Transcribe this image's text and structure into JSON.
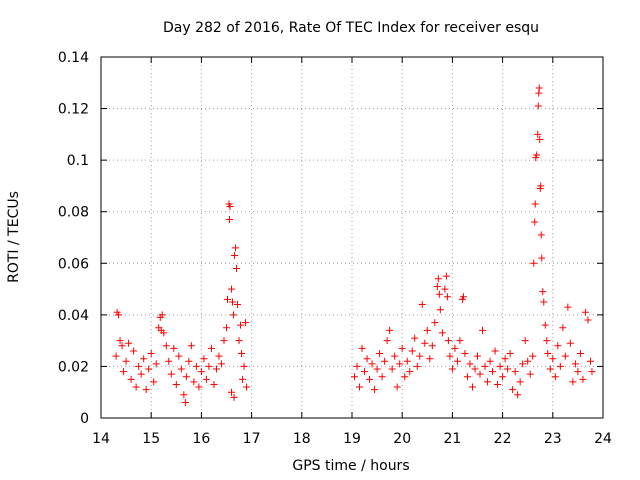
{
  "chart_data": {
    "type": "scatter",
    "title": "Day 282 of 2016, Rate Of TEC Index for receiver esqu",
    "xlabel": "GPS time / hours",
    "ylabel": "ROTI / TECUs",
    "xlim": [
      14,
      24
    ],
    "ylim": [
      0,
      0.14
    ],
    "x_ticks": [
      14,
      15,
      16,
      17,
      18,
      19,
      20,
      21,
      22,
      23,
      24
    ],
    "y_ticks": [
      0,
      0.02,
      0.04,
      0.06,
      0.08,
      0.1,
      0.12,
      0.14
    ],
    "x_tick_labels": [
      "14",
      "15",
      "16",
      "17",
      "18",
      "19",
      "20",
      "21",
      "22",
      "23",
      "24"
    ],
    "y_tick_labels": [
      "0",
      "0.02",
      "0.04",
      "0.06",
      "0.08",
      "0.1",
      "0.12",
      "0.14"
    ],
    "grid": true,
    "marker": "+",
    "color": "#ff0000",
    "series": [
      {
        "name": "ROTI",
        "points": [
          [
            14.32,
            0.041
          ],
          [
            14.35,
            0.04
          ],
          [
            14.3,
            0.024
          ],
          [
            14.38,
            0.03
          ],
          [
            14.42,
            0.028
          ],
          [
            14.45,
            0.018
          ],
          [
            14.5,
            0.022
          ],
          [
            14.55,
            0.029
          ],
          [
            14.6,
            0.015
          ],
          [
            14.65,
            0.026
          ],
          [
            14.7,
            0.012
          ],
          [
            14.75,
            0.02
          ],
          [
            14.8,
            0.017
          ],
          [
            14.85,
            0.023
          ],
          [
            14.9,
            0.011
          ],
          [
            14.95,
            0.019
          ],
          [
            15.0,
            0.025
          ],
          [
            15.05,
            0.014
          ],
          [
            15.1,
            0.021
          ],
          [
            15.15,
            0.035
          ],
          [
            15.2,
            0.034
          ],
          [
            15.25,
            0.033
          ],
          [
            15.18,
            0.039
          ],
          [
            15.22,
            0.04
          ],
          [
            15.3,
            0.028
          ],
          [
            15.35,
            0.022
          ],
          [
            15.4,
            0.017
          ],
          [
            15.45,
            0.027
          ],
          [
            15.5,
            0.013
          ],
          [
            15.55,
            0.024
          ],
          [
            15.6,
            0.019
          ],
          [
            15.65,
            0.009
          ],
          [
            15.68,
            0.006
          ],
          [
            15.7,
            0.016
          ],
          [
            15.75,
            0.022
          ],
          [
            15.8,
            0.028
          ],
          [
            15.85,
            0.014
          ],
          [
            15.9,
            0.02
          ],
          [
            15.95,
            0.012
          ],
          [
            16.0,
            0.018
          ],
          [
            16.05,
            0.023
          ],
          [
            16.1,
            0.015
          ],
          [
            16.15,
            0.02
          ],
          [
            16.2,
            0.027
          ],
          [
            16.25,
            0.013
          ],
          [
            16.3,
            0.019
          ],
          [
            16.35,
            0.024
          ],
          [
            16.4,
            0.021
          ],
          [
            16.45,
            0.03
          ],
          [
            16.5,
            0.035
          ],
          [
            16.52,
            0.046
          ],
          [
            16.55,
            0.083
          ],
          [
            16.57,
            0.082
          ],
          [
            16.56,
            0.077
          ],
          [
            16.6,
            0.05
          ],
          [
            16.62,
            0.045
          ],
          [
            16.64,
            0.04
          ],
          [
            16.66,
            0.063
          ],
          [
            16.68,
            0.066
          ],
          [
            16.7,
            0.058
          ],
          [
            16.72,
            0.044
          ],
          [
            16.75,
            0.03
          ],
          [
            16.78,
            0.036
          ],
          [
            16.8,
            0.025
          ],
          [
            16.82,
            0.015
          ],
          [
            16.85,
            0.02
          ],
          [
            16.88,
            0.037
          ],
          [
            16.9,
            0.012
          ],
          [
            16.6,
            0.01
          ],
          [
            16.65,
            0.008
          ],
          [
            19.05,
            0.016
          ],
          [
            19.1,
            0.02
          ],
          [
            19.15,
            0.012
          ],
          [
            19.2,
            0.027
          ],
          [
            19.25,
            0.018
          ],
          [
            19.3,
            0.023
          ],
          [
            19.35,
            0.015
          ],
          [
            19.4,
            0.021
          ],
          [
            19.45,
            0.011
          ],
          [
            19.5,
            0.019
          ],
          [
            19.55,
            0.025
          ],
          [
            19.6,
            0.016
          ],
          [
            19.65,
            0.022
          ],
          [
            19.7,
            0.03
          ],
          [
            19.75,
            0.034
          ],
          [
            19.8,
            0.019
          ],
          [
            19.85,
            0.024
          ],
          [
            19.9,
            0.012
          ],
          [
            19.95,
            0.021
          ],
          [
            20.0,
            0.027
          ],
          [
            20.05,
            0.016
          ],
          [
            20.1,
            0.022
          ],
          [
            20.15,
            0.018
          ],
          [
            20.2,
            0.026
          ],
          [
            20.25,
            0.031
          ],
          [
            20.3,
            0.02
          ],
          [
            20.35,
            0.024
          ],
          [
            20.4,
            0.044
          ],
          [
            20.45,
            0.029
          ],
          [
            20.5,
            0.034
          ],
          [
            20.55,
            0.023
          ],
          [
            20.6,
            0.028
          ],
          [
            20.65,
            0.037
          ],
          [
            20.7,
            0.051
          ],
          [
            20.72,
            0.054
          ],
          [
            20.74,
            0.048
          ],
          [
            20.76,
            0.042
          ],
          [
            20.8,
            0.033
          ],
          [
            20.85,
            0.05
          ],
          [
            20.88,
            0.055
          ],
          [
            20.9,
            0.047
          ],
          [
            20.92,
            0.03
          ],
          [
            20.95,
            0.024
          ],
          [
            21.0,
            0.019
          ],
          [
            21.05,
            0.027
          ],
          [
            21.1,
            0.022
          ],
          [
            21.15,
            0.03
          ],
          [
            21.2,
            0.046
          ],
          [
            21.22,
            0.047
          ],
          [
            21.25,
            0.025
          ],
          [
            21.3,
            0.016
          ],
          [
            21.35,
            0.021
          ],
          [
            21.4,
            0.012
          ],
          [
            21.45,
            0.019
          ],
          [
            21.5,
            0.024
          ],
          [
            21.55,
            0.017
          ],
          [
            21.6,
            0.034
          ],
          [
            21.65,
            0.02
          ],
          [
            21.7,
            0.014
          ],
          [
            21.75,
            0.022
          ],
          [
            21.8,
            0.018
          ],
          [
            21.85,
            0.026
          ],
          [
            21.9,
            0.013
          ],
          [
            21.95,
            0.02
          ],
          [
            22.0,
            0.016
          ],
          [
            22.05,
            0.023
          ],
          [
            22.1,
            0.019
          ],
          [
            22.15,
            0.025
          ],
          [
            22.2,
            0.011
          ],
          [
            22.25,
            0.018
          ],
          [
            22.3,
            0.009
          ],
          [
            22.35,
            0.014
          ],
          [
            22.4,
            0.021
          ],
          [
            22.45,
            0.03
          ],
          [
            22.5,
            0.022
          ],
          [
            22.55,
            0.017
          ],
          [
            22.6,
            0.024
          ],
          [
            22.62,
            0.06
          ],
          [
            22.64,
            0.076
          ],
          [
            22.65,
            0.083
          ],
          [
            22.66,
            0.101
          ],
          [
            22.68,
            0.102
          ],
          [
            22.7,
            0.11
          ],
          [
            22.71,
            0.121
          ],
          [
            22.72,
            0.126
          ],
          [
            22.73,
            0.128
          ],
          [
            22.74,
            0.108
          ],
          [
            22.75,
            0.089
          ],
          [
            22.76,
            0.09
          ],
          [
            22.77,
            0.071
          ],
          [
            22.78,
            0.062
          ],
          [
            22.8,
            0.049
          ],
          [
            22.82,
            0.045
          ],
          [
            22.85,
            0.036
          ],
          [
            22.88,
            0.03
          ],
          [
            22.9,
            0.025
          ],
          [
            22.95,
            0.019
          ],
          [
            23.0,
            0.023
          ],
          [
            23.05,
            0.016
          ],
          [
            23.1,
            0.028
          ],
          [
            23.15,
            0.02
          ],
          [
            23.2,
            0.035
          ],
          [
            23.25,
            0.024
          ],
          [
            23.3,
            0.043
          ],
          [
            23.35,
            0.029
          ],
          [
            23.4,
            0.014
          ],
          [
            23.45,
            0.021
          ],
          [
            23.5,
            0.018
          ],
          [
            23.55,
            0.025
          ],
          [
            23.6,
            0.015
          ],
          [
            23.65,
            0.041
          ],
          [
            23.7,
            0.038
          ],
          [
            23.75,
            0.022
          ],
          [
            23.78,
            0.018
          ]
        ]
      }
    ]
  }
}
